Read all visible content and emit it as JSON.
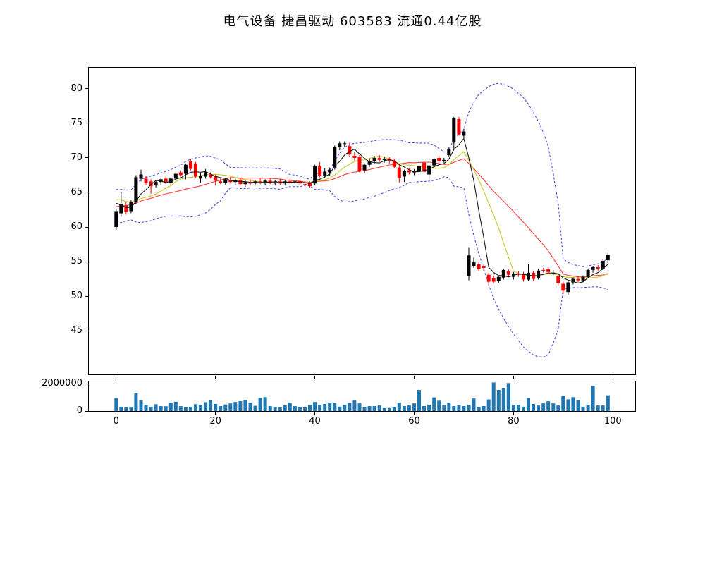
{
  "title": "电气设备  捷昌驱动  603583  流通0.44亿股",
  "colors": {
    "background": "#ffffff",
    "axis": "#000000",
    "candle_up": "#000000",
    "candle_down": "#ff0000",
    "ma_short": "#1a1a1a",
    "ma_mid": "#c8c828",
    "ma_long": "#ff3b3b",
    "bollinger": "#3c3cff",
    "volume_bar": "#1f77b4"
  },
  "chart_data": {
    "type": "candlestick_with_volume",
    "title": "电气设备  捷昌驱动  603583  流通0.44亿股",
    "legend": "none",
    "grid": false,
    "x_axis": {
      "ticks": [
        0,
        20,
        40,
        60,
        80,
        100
      ],
      "xlim": [
        -5.5,
        104.5
      ]
    },
    "price_axis": {
      "ticks": [
        80,
        75,
        70,
        65,
        60,
        55,
        50,
        45
      ],
      "ylim": [
        38.7,
        83.04
      ]
    },
    "volume_axis": {
      "ticks": [
        {
          "label": "2000000",
          "value": 2000000
        },
        {
          "label": "0",
          "value": 0
        }
      ],
      "ylim": [
        0,
        2170000
      ]
    },
    "indicators": {
      "ma_short_period": 5,
      "ma_mid_period": 10,
      "ma_long_period": 20,
      "bollinger_period": 20,
      "bollinger_mult": 2
    },
    "prehistory_closes": [
      61.5,
      61.0,
      61.8,
      62.2,
      61.4,
      62.0,
      62.5,
      61.8,
      62.3,
      63.0,
      63.8,
      64.5,
      64.2,
      64.8,
      65.2,
      64.6,
      64.0,
      63.5,
      62.8
    ],
    "candles": {
      "columns": [
        "open",
        "high",
        "low",
        "close",
        "volume"
      ],
      "rows": [
        [
          60.0,
          62.6,
          59.6,
          62.3,
          950000
        ],
        [
          62.0,
          65.0,
          61.5,
          63.3,
          300000
        ],
        [
          63.1,
          63.6,
          61.8,
          62.2,
          260000
        ],
        [
          62.3,
          63.9,
          62.0,
          63.6,
          300000
        ],
        [
          63.6,
          67.5,
          63.3,
          67.2,
          1300000
        ],
        [
          67.0,
          68.3,
          66.6,
          67.6,
          780000
        ],
        [
          67.0,
          67.4,
          66.1,
          66.4,
          450000
        ],
        [
          66.6,
          66.9,
          64.8,
          65.9,
          310000
        ],
        [
          66.0,
          66.8,
          65.7,
          66.5,
          500000
        ],
        [
          66.5,
          67.1,
          66.1,
          66.9,
          360000
        ],
        [
          67.0,
          67.3,
          66.2,
          66.5,
          350000
        ],
        [
          66.4,
          67.2,
          66.1,
          67.0,
          600000
        ],
        [
          67.0,
          67.9,
          66.7,
          67.7,
          680000
        ],
        [
          67.9,
          68.2,
          67.3,
          67.5,
          360000
        ],
        [
          67.7,
          69.2,
          66.9,
          69.0,
          270000
        ],
        [
          69.5,
          69.9,
          68.2,
          68.4,
          310000
        ],
        [
          69.2,
          69.4,
          67.1,
          67.3,
          500000
        ],
        [
          67.0,
          67.8,
          66.4,
          67.4,
          420000
        ],
        [
          67.3,
          68.4,
          67.0,
          68.0,
          650000
        ],
        [
          67.6,
          67.9,
          67.0,
          67.2,
          780000
        ],
        [
          67.4,
          67.6,
          66.0,
          66.7,
          520000
        ],
        [
          66.6,
          67.0,
          66.2,
          66.4,
          360000
        ],
        [
          66.4,
          67.1,
          66.1,
          66.9,
          480000
        ],
        [
          66.8,
          67.2,
          66.3,
          66.5,
          560000
        ],
        [
          66.5,
          67.0,
          66.1,
          66.8,
          660000
        ],
        [
          66.8,
          67.1,
          66.0,
          66.2,
          720000
        ],
        [
          66.2,
          66.7,
          65.8,
          66.5,
          820000
        ],
        [
          66.5,
          66.9,
          66.1,
          66.3,
          610000
        ],
        [
          66.3,
          66.8,
          66.0,
          66.6,
          380000
        ],
        [
          66.6,
          67.1,
          66.2,
          66.4,
          960000
        ],
        [
          66.4,
          66.9,
          66.0,
          66.7,
          1020000
        ],
        [
          66.7,
          67.0,
          66.2,
          66.4,
          360000
        ],
        [
          66.3,
          66.8,
          66.0,
          66.6,
          300000
        ],
        [
          66.6,
          66.9,
          66.1,
          66.3,
          260000
        ],
        [
          66.3,
          66.8,
          66.0,
          66.6,
          420000
        ],
        [
          66.6,
          67.0,
          66.2,
          66.4,
          620000
        ],
        [
          66.4,
          66.8,
          65.9,
          66.6,
          360000
        ],
        [
          66.6,
          66.9,
          66.1,
          66.3,
          310000
        ],
        [
          66.2,
          66.6,
          65.8,
          66.1,
          260000
        ],
        [
          66.3,
          66.6,
          65.7,
          65.9,
          460000
        ],
        [
          66.3,
          69.0,
          66.0,
          68.8,
          660000
        ],
        [
          68.8,
          69.4,
          67.2,
          67.4,
          460000
        ],
        [
          67.4,
          68.5,
          67.1,
          68.0,
          520000
        ],
        [
          67.9,
          68.6,
          67.4,
          68.3,
          620000
        ],
        [
          68.6,
          71.8,
          68.3,
          71.6,
          570000
        ],
        [
          71.6,
          72.4,
          71.1,
          72.1,
          320000
        ],
        [
          72.0,
          72.4,
          71.5,
          72.1,
          450000
        ],
        [
          71.7,
          72.2,
          70.2,
          70.5,
          600000
        ],
        [
          70.3,
          70.8,
          69.6,
          70.0,
          770000
        ],
        [
          70.2,
          70.4,
          67.9,
          68.1,
          560000
        ],
        [
          68.2,
          69.2,
          67.8,
          69.0,
          310000
        ],
        [
          69.0,
          69.8,
          68.7,
          69.5,
          360000
        ],
        [
          69.5,
          70.3,
          69.2,
          70.0,
          360000
        ],
        [
          70.0,
          70.4,
          69.4,
          69.7,
          410000
        ],
        [
          69.7,
          70.2,
          69.3,
          69.9,
          210000
        ],
        [
          69.9,
          70.1,
          69.2,
          69.6,
          220000
        ],
        [
          69.6,
          69.9,
          68.5,
          68.7,
          310000
        ],
        [
          68.6,
          69.0,
          66.4,
          67.1,
          620000
        ],
        [
          67.3,
          68.3,
          66.5,
          68.1,
          360000
        ],
        [
          68.2,
          68.5,
          67.6,
          67.9,
          410000
        ],
        [
          67.9,
          68.4,
          67.5,
          68.1,
          560000
        ],
        [
          68.1,
          69.0,
          67.9,
          68.8,
          1550000
        ],
        [
          69.3,
          69.5,
          67.9,
          68.0,
          360000
        ],
        [
          67.6,
          69.1,
          66.8,
          68.9,
          460000
        ],
        [
          68.9,
          70.0,
          68.6,
          69.8,
          1000000
        ],
        [
          70.0,
          70.3,
          69.4,
          69.5,
          760000
        ],
        [
          69.5,
          70.0,
          69.3,
          69.7,
          460000
        ],
        [
          70.4,
          71.5,
          70.1,
          71.3,
          620000
        ],
        [
          72.2,
          75.9,
          71.3,
          75.7,
          360000
        ],
        [
          75.6,
          75.9,
          73.2,
          73.4,
          460000
        ],
        [
          73.2,
          74.2,
          72.7,
          73.8,
          360000
        ],
        [
          52.9,
          57.0,
          52.3,
          55.9,
          460000
        ],
        [
          54.4,
          55.6,
          54.1,
          54.9,
          920000
        ],
        [
          54.6,
          54.9,
          53.6,
          53.9,
          310000
        ],
        [
          54.3,
          54.6,
          53.7,
          54.1,
          360000
        ],
        [
          53.1,
          53.4,
          51.6,
          52.1,
          850000
        ],
        [
          52.6,
          53.0,
          51.9,
          52.1,
          2100000
        ],
        [
          52.2,
          53.0,
          51.9,
          52.8,
          1550000
        ],
        [
          52.7,
          54.0,
          52.4,
          53.8,
          1700000
        ],
        [
          53.6,
          53.9,
          52.8,
          53.1,
          2050000
        ],
        [
          52.8,
          53.5,
          52.4,
          53.3,
          460000
        ],
        [
          53.3,
          53.6,
          52.8,
          53.1,
          460000
        ],
        [
          53.2,
          53.5,
          52.1,
          52.4,
          310000
        ],
        [
          52.4,
          54.6,
          52.2,
          53.4,
          950000
        ],
        [
          53.4,
          53.7,
          52.2,
          52.5,
          520000
        ],
        [
          52.6,
          54.0,
          52.4,
          53.7,
          410000
        ],
        [
          53.8,
          54.1,
          53.4,
          53.7,
          560000
        ],
        [
          53.9,
          54.2,
          53.2,
          53.5,
          720000
        ],
        [
          53.4,
          53.8,
          53.0,
          53.4,
          560000
        ],
        [
          52.9,
          53.1,
          51.6,
          51.9,
          410000
        ],
        [
          51.8,
          52.1,
          50.3,
          50.8,
          1100000
        ],
        [
          50.6,
          52.3,
          50.2,
          52.0,
          860000
        ],
        [
          52.0,
          52.7,
          51.7,
          52.5,
          1020000
        ],
        [
          52.5,
          52.9,
          52.0,
          52.3,
          820000
        ],
        [
          52.3,
          53.0,
          52.0,
          52.8,
          310000
        ],
        [
          52.8,
          54.0,
          52.6,
          53.8,
          460000
        ],
        [
          53.8,
          54.4,
          53.4,
          54.2,
          1850000
        ],
        [
          54.2,
          54.5,
          53.7,
          54.0,
          410000
        ],
        [
          54.0,
          55.3,
          53.8,
          55.1,
          410000
        ],
        [
          55.2,
          56.3,
          54.8,
          56.0,
          1150000
        ]
      ]
    }
  }
}
